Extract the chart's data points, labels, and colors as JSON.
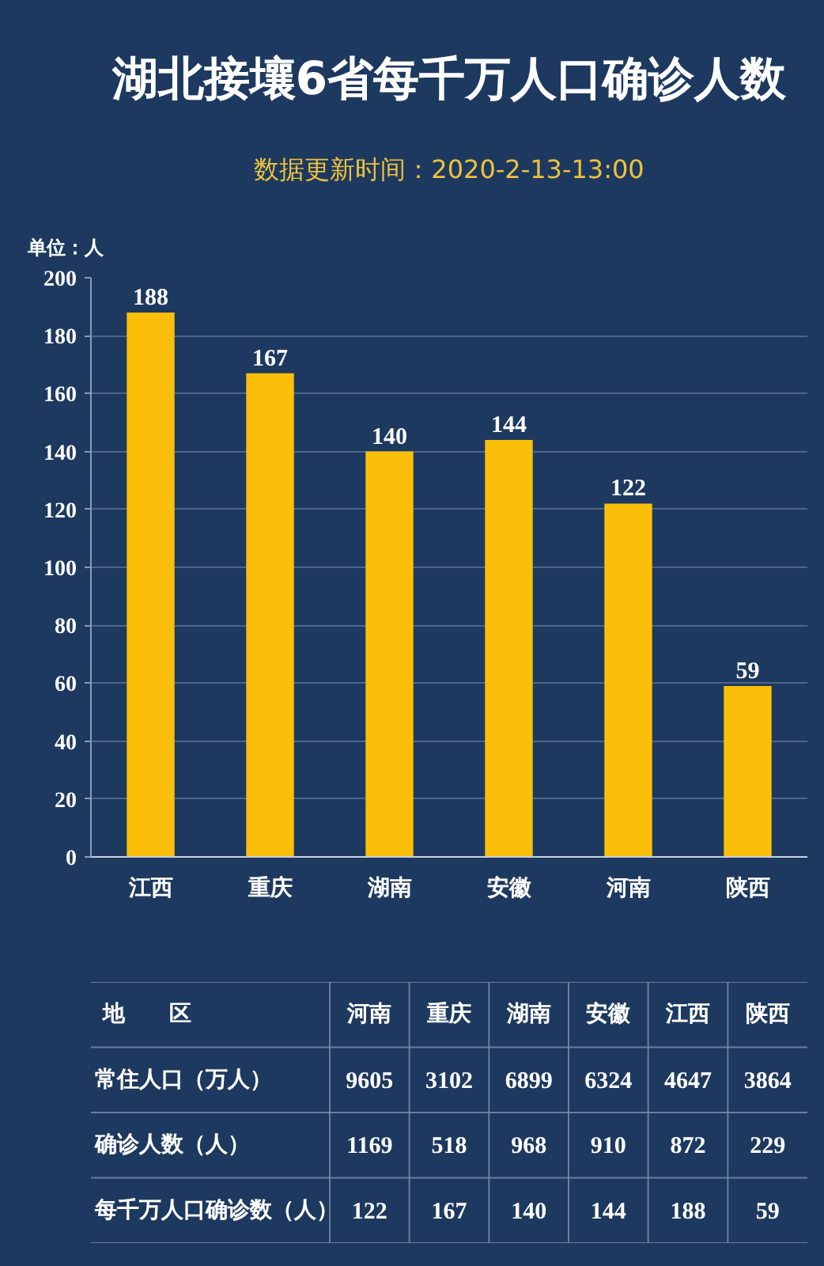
{
  "chart_data": [
    {
      "type": "bar",
      "title": "湖北接壤6省每千万人口确诊人数",
      "subtitle": "数据更新时间：2020-2-13-13:00",
      "ylabel": "单位：人",
      "categories": [
        "江西",
        "重庆",
        "湖南",
        "安徽",
        "河南",
        "陕西"
      ],
      "values": [
        188,
        167,
        140,
        144,
        122,
        59
      ],
      "color": "#fbbf0a",
      "ylim": [
        0,
        200
      ],
      "yticks": [
        0,
        20,
        40,
        60,
        80,
        100,
        120,
        140,
        160,
        180,
        200
      ],
      "grid": "y",
      "data_labels": true
    },
    {
      "type": "heatmap",
      "ylabel": "地　　区",
      "categories": [
        "河南",
        "重庆",
        "湖南",
        "安徽",
        "江西",
        "陕西"
      ],
      "y_categories": [
        "常住人口（万人）",
        "确诊人数（人）",
        "每千万人口确诊数（人）"
      ],
      "cells": [
        [
          9605,
          3102,
          6899,
          6324,
          4647,
          3864
        ],
        [
          1169,
          518,
          968,
          910,
          872,
          229
        ],
        [
          122,
          167,
          140,
          144,
          188,
          59
        ]
      ],
      "data_labels": true
    }
  ]
}
